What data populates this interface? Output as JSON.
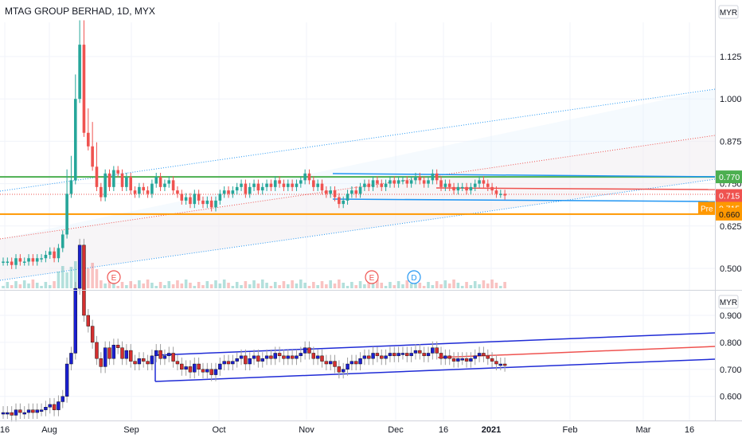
{
  "header": {
    "title": "MTAG GROUP BERHAD, 1D, MYX"
  },
  "colors": {
    "up": "#26a69a",
    "down": "#ef5350",
    "channel": "#1f2bd6",
    "mid": "#ef5350",
    "resistance": "#4caf50",
    "support": "#ff9800",
    "trend_blue": "#2196f3",
    "label_green": "#4caf50",
    "label_red": "#ef5350",
    "label_orange": "#ff9800",
    "grid": "#f0f3fa",
    "axis_text": "#131722"
  },
  "chart_data": [
    {
      "type": "candlestick",
      "title": "MTAG GROUP BERHAD, 1D, MYX",
      "currency": "MYR",
      "yticks": [
        "1.125",
        "1.000",
        "0.875",
        "0.750",
        "0.625",
        "0.500"
      ],
      "ylim": [
        0.44,
        1.2
      ],
      "price_labels": [
        {
          "text": "0.770",
          "value": 0.77,
          "kind": "green"
        },
        {
          "text": "0.715",
          "value": 0.715,
          "kind": "red"
        },
        {
          "text": "0.715",
          "value": 0.715,
          "kind": "pre",
          "tag": "Pre"
        },
        {
          "text": "0.660",
          "value": 0.66,
          "kind": "orange"
        }
      ],
      "horizontal_lines": [
        {
          "value": 0.77,
          "kind": "resistance"
        },
        {
          "value": 0.66,
          "kind": "support"
        }
      ],
      "events": [
        {
          "label": "E",
          "date": "Aug 20",
          "kind": "earnings"
        },
        {
          "label": "E",
          "date": "Nov 27",
          "kind": "earnings"
        },
        {
          "label": "D",
          "date": "Dec 3",
          "kind": "dividend"
        }
      ],
      "closes": [
        0.52,
        0.52,
        0.51,
        0.53,
        0.52,
        0.52,
        0.53,
        0.52,
        0.53,
        0.53,
        0.54,
        0.55,
        0.53,
        0.56,
        0.6,
        0.72,
        0.76,
        1.0,
        1.16,
        0.9,
        0.86,
        0.8,
        0.74,
        0.71,
        0.78,
        0.74,
        0.79,
        0.78,
        0.74,
        0.77,
        0.73,
        0.72,
        0.74,
        0.73,
        0.72,
        0.75,
        0.77,
        0.74,
        0.75,
        0.76,
        0.73,
        0.72,
        0.7,
        0.71,
        0.69,
        0.72,
        0.7,
        0.69,
        0.7,
        0.68,
        0.7,
        0.72,
        0.73,
        0.72,
        0.73,
        0.74,
        0.75,
        0.72,
        0.74,
        0.75,
        0.73,
        0.74,
        0.75,
        0.74,
        0.76,
        0.75,
        0.74,
        0.75,
        0.74,
        0.75,
        0.76,
        0.78,
        0.76,
        0.74,
        0.75,
        0.73,
        0.72,
        0.73,
        0.71,
        0.69,
        0.7,
        0.72,
        0.73,
        0.72,
        0.74,
        0.75,
        0.74,
        0.76,
        0.75,
        0.74,
        0.75,
        0.76,
        0.75,
        0.76,
        0.76,
        0.75,
        0.76,
        0.77,
        0.76,
        0.75,
        0.76,
        0.78,
        0.76,
        0.74,
        0.75,
        0.74,
        0.73,
        0.74,
        0.74,
        0.73,
        0.74,
        0.75,
        0.76,
        0.75,
        0.74,
        0.73,
        0.72,
        0.72,
        0.715
      ]
    },
    {
      "type": "candlestick",
      "title": "",
      "currency": "MYR",
      "yticks": [
        "0.900",
        "0.800",
        "0.700",
        "0.600"
      ],
      "ylim": [
        0.53,
        0.94
      ]
    }
  ],
  "xaxis": {
    "labels": [
      "16",
      "Aug",
      "Sep",
      "Oct",
      "Nov",
      "Dec",
      "16",
      "2021",
      "Feb",
      "Mar",
      "16"
    ]
  },
  "currency_buttons": {
    "top": "MYR",
    "bottom": "MYR"
  },
  "pre_tag": "Pre"
}
